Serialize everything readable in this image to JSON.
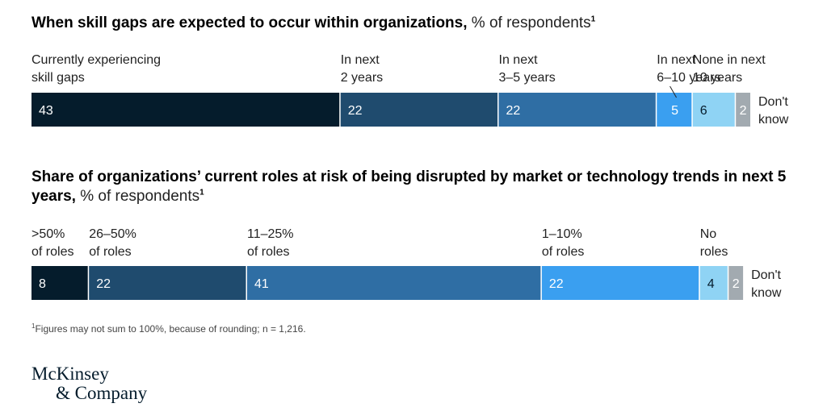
{
  "chart_data": [
    {
      "type": "bar",
      "orientation": "horizontal",
      "stacked": true,
      "title": "When skill gaps are expected to occur within organizations,",
      "unit": "% of respondents",
      "footnote_ref": "1",
      "series": [
        {
          "name": "Currently experiencing skill gaps",
          "value": 43,
          "color": "#051c2c",
          "text_color": "#ffffff"
        },
        {
          "name": "In next 2 years",
          "value": 22,
          "color": "#1f4b6e",
          "text_color": "#ffffff"
        },
        {
          "name": "In next 3–5 years",
          "value": 22,
          "color": "#2f6ea4",
          "text_color": "#ffffff"
        },
        {
          "name": "In next 6–10 years",
          "value": 5,
          "color": "#3a9ff0",
          "text_color": "#ffffff"
        },
        {
          "name": "None in next 10 years",
          "value": 6,
          "color": "#8fd3f4",
          "text_color": "#051c2c"
        },
        {
          "name": "Don't know",
          "value": 2,
          "color": "#a2aab0",
          "text_color": "#ffffff"
        }
      ]
    },
    {
      "type": "bar",
      "orientation": "horizontal",
      "stacked": true,
      "title": "Share of organizations’ current roles at risk of being disrupted by market or technology trends in next 5 years,",
      "unit": "% of respondents",
      "footnote_ref": "1",
      "series": [
        {
          "name": ">50% of roles",
          "value": 8,
          "color": "#051c2c",
          "text_color": "#ffffff"
        },
        {
          "name": "26–50% of roles",
          "value": 22,
          "color": "#1f4b6e",
          "text_color": "#ffffff"
        },
        {
          "name": "11–25% of roles",
          "value": 41,
          "color": "#2f6ea4",
          "text_color": "#ffffff"
        },
        {
          "name": "1–10% of roles",
          "value": 22,
          "color": "#3a9ff0",
          "text_color": "#ffffff"
        },
        {
          "name": "No roles",
          "value": 4,
          "color": "#8fd3f4",
          "text_color": "#051c2c"
        },
        {
          "name": "Don't know",
          "value": 2,
          "color": "#a2aab0",
          "text_color": "#ffffff"
        }
      ]
    }
  ],
  "footnote": {
    "marker": "1",
    "text": "Figures may not sum to 100%, because of rounding; n = 1,216."
  },
  "logo": {
    "line1": "McKinsey",
    "line2": "& Company"
  }
}
